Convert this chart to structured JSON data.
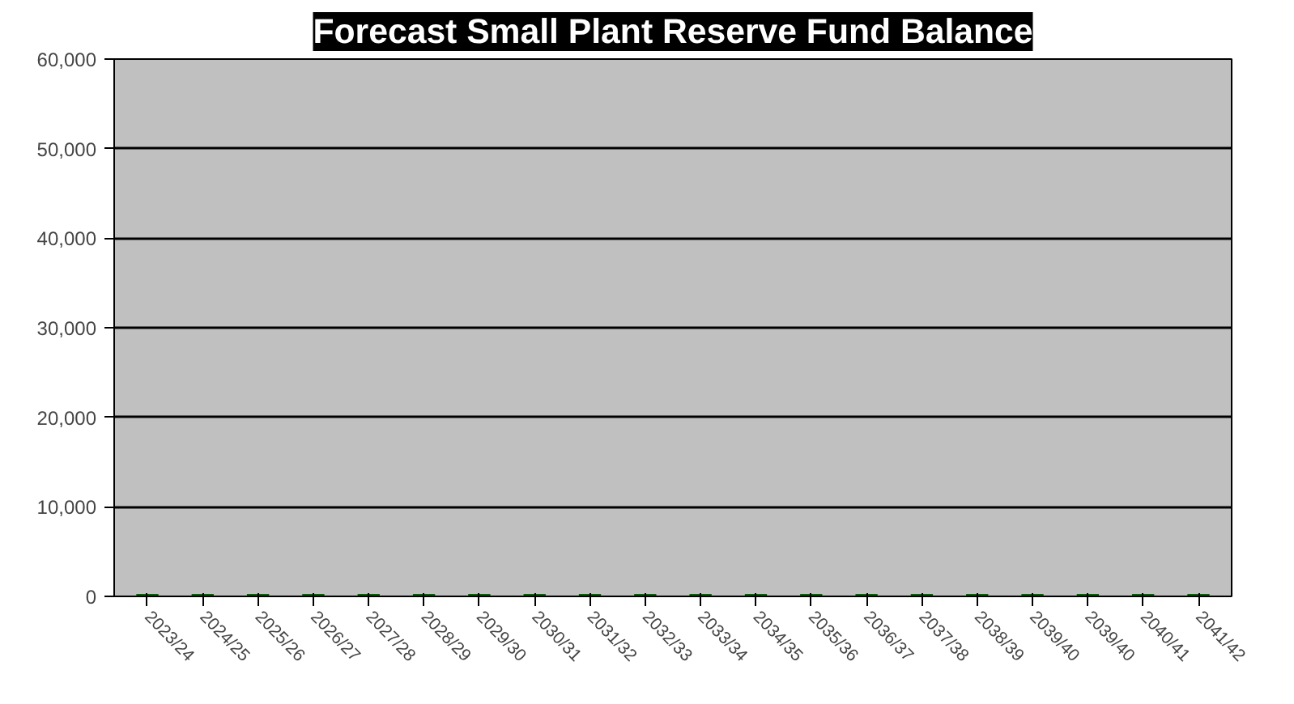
{
  "chart_data": {
    "type": "bar",
    "title": "Forecast Small Plant Reserve Fund Balance",
    "categories": [
      "2023/24",
      "2024/25",
      "2025/26",
      "2026/27",
      "2027/28",
      "2028/29",
      "2029/30",
      "2030/31",
      "2031/32",
      "2032/33",
      "2033/34",
      "2034/35",
      "2035/36",
      "2036/37",
      "2037/38",
      "2038/39",
      "2039/40",
      "2039/40",
      "2040/41",
      "2041/42"
    ],
    "values": [
      0,
      0,
      0,
      0,
      0,
      0,
      0,
      0,
      0,
      0,
      0,
      0,
      0,
      0,
      0,
      0,
      0,
      0,
      0,
      0
    ],
    "color": "#006400",
    "ylim": [
      0,
      60000
    ],
    "yticks": [
      {
        "value": 0,
        "label": "0"
      },
      {
        "value": 10000,
        "label": "10,000"
      },
      {
        "value": 20000,
        "label": "20,000"
      },
      {
        "value": 30000,
        "label": "30,000"
      },
      {
        "value": 40000,
        "label": "40,000"
      },
      {
        "value": 50000,
        "label": "50,000"
      },
      {
        "value": 60000,
        "label": "60,000"
      }
    ],
    "grid": "y"
  }
}
